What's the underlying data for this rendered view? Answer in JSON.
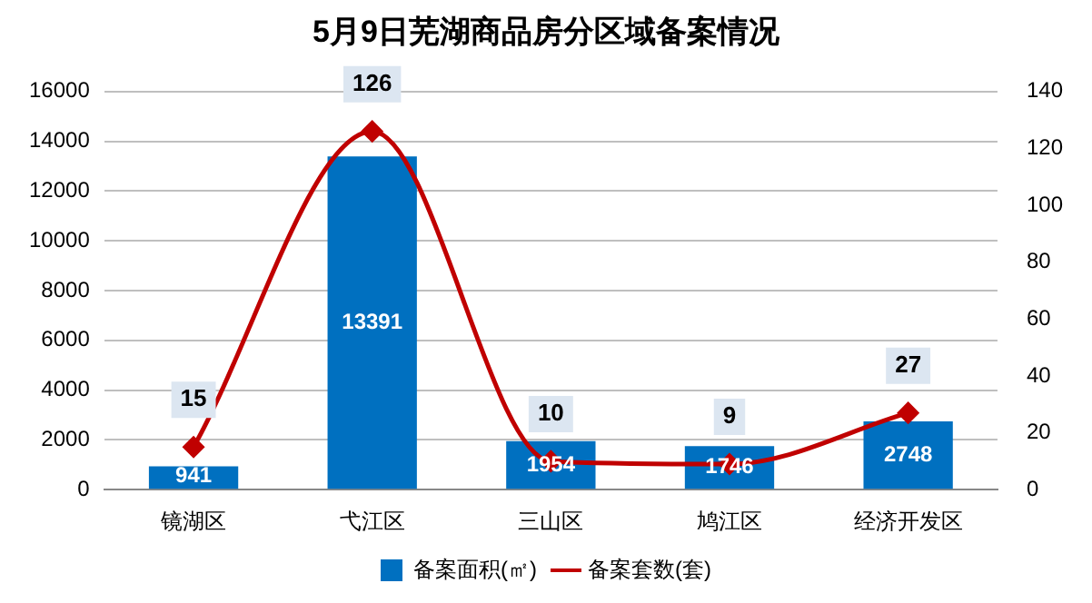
{
  "chart_data": {
    "type": "bar",
    "title": "5月9日芜湖商品房分区域备案情况",
    "categories": [
      "镜湖区",
      "弋江区",
      "三山区",
      "鸠江区",
      "经济开发区"
    ],
    "series": [
      {
        "name": "备案面积(㎡)",
        "color": "#0070c0",
        "values": [
          941,
          13391,
          1954,
          1746,
          2748
        ]
      },
      {
        "name": "备案套数(套)",
        "type": "line",
        "axis": "y2",
        "color": "#c00000",
        "marker": "diamond",
        "values": [
          15,
          126,
          10,
          9,
          27
        ]
      }
    ],
    "ylim": [
      0,
      16000
    ],
    "yticks": [
      0,
      2000,
      4000,
      6000,
      8000,
      10000,
      12000,
      14000,
      16000
    ],
    "y2lim": [
      0,
      140
    ],
    "y2ticks": [
      0,
      20,
      40,
      60,
      80,
      100,
      120,
      140
    ],
    "grid": "y",
    "legend": "bottom",
    "data_labels": true
  }
}
